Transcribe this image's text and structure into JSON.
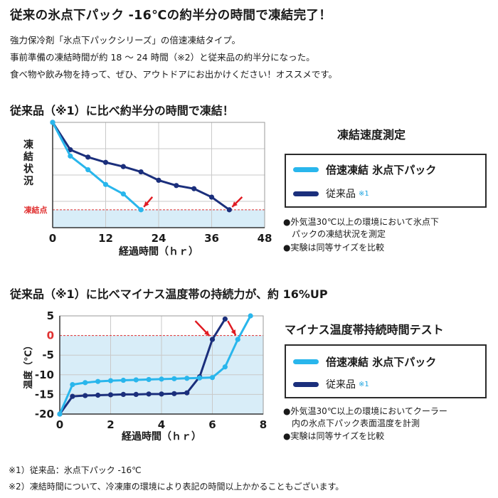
{
  "headline": "従来の氷点下パック -16℃の約半分の時間で凍結完了！",
  "intro_lines": [
    "強力保冷剤「氷点下パックシリーズ」の倍速凍結タイプ。",
    "事前準備の凍結時間が約 18 ～ 24 時間（※2）と従来品の約半分になった。",
    "食べ物や飲み物を持って、ぜひ、アウトドアにお出かけください！オススメです。"
  ],
  "section1_heading": "従来品（※1）に比べ約半分の時間で凍結！",
  "section2_heading": "従来品（※1）に比べマイナス温度帯の持続力が、約 16%UP",
  "colors": {
    "fast": "#29b6ec",
    "conventional": "#1b2f7c",
    "freeze_zone": "#d8edf8",
    "guide": "#e03030",
    "arrow": "#e01b22"
  },
  "chart_data": [
    {
      "type": "line",
      "title": "凍結速度測定",
      "ylabel": "凍結状況",
      "xlabel": "経過時間（ｈｒ）",
      "xlim": [
        0,
        48
      ],
      "ylim": [
        0,
        100
      ],
      "xticks": [
        "0",
        "12",
        "24",
        "36",
        "48"
      ],
      "freeze_label": "凍結点",
      "freeze_level": 17,
      "x": [
        0,
        4,
        8,
        12,
        16,
        20
      ],
      "series": [
        {
          "name": "倍速凍結 氷点下パック",
          "note": "",
          "x": [
            0,
            4,
            8,
            12,
            16,
            20
          ],
          "values": [
            100,
            68,
            55,
            41,
            32,
            17
          ]
        },
        {
          "name": "従来品",
          "note": "※1",
          "x": [
            0,
            4,
            8,
            12,
            16,
            20,
            24,
            28,
            32,
            36,
            40
          ],
          "values": [
            100,
            74,
            67,
            62,
            58,
            53,
            45,
            40,
            37,
            29,
            17
          ]
        }
      ],
      "legend": [
        "倍速凍結 氷点下パック",
        "従来品 ※1"
      ],
      "notes": [
        "●外気温30℃以上の環境において氷点下",
        "　パックの凍結状況を測定",
        "●実験は同等サイズを比較"
      ]
    },
    {
      "type": "line",
      "title": "マイナス温度帯持続時間テスト",
      "ylabel": "温度（℃）",
      "xlabel": "経過時間（ｈｒ）",
      "xlim": [
        0,
        8
      ],
      "ylim": [
        -20,
        5
      ],
      "xticks": [
        "0",
        "2",
        "4",
        "6",
        "8"
      ],
      "yticks": [
        "5",
        "0",
        "-5",
        "-10",
        "-15",
        "-20"
      ],
      "zero_line": 0,
      "series": [
        {
          "name": "倍速凍結 氷点下パック",
          "note": "",
          "x": [
            0,
            0.5,
            1,
            1.5,
            2,
            2.5,
            3,
            3.5,
            4,
            4.5,
            5,
            5.5,
            6,
            6.5,
            7,
            7.5
          ],
          "values": [
            -20,
            -12.5,
            -12,
            -11.7,
            -11.5,
            -11.4,
            -11.3,
            -11.2,
            -11.1,
            -11,
            -10.9,
            -10.8,
            -10.7,
            -8,
            -1,
            5
          ]
        },
        {
          "name": "従来品",
          "note": "※1",
          "x": [
            0,
            0.5,
            1,
            1.5,
            2,
            2.5,
            3,
            3.5,
            4,
            4.5,
            5,
            5.5,
            6,
            6.5
          ],
          "values": [
            -20,
            -15.5,
            -15.3,
            -15.2,
            -15.1,
            -15,
            -15,
            -14.9,
            -14.9,
            -14.8,
            -14.6,
            -10.5,
            -1,
            4.2
          ]
        }
      ],
      "legend": [
        "倍速凍結 氷点下パック",
        "従来品 ※1"
      ],
      "notes": [
        "●外気温30℃以上の環境においてクーラー",
        "　内の氷点下パック表面温度を計測",
        "●実験は同等サイズを比較"
      ]
    }
  ],
  "footnotes": [
    "※1）従来品：氷点下パック -16℃",
    "※2）凍結時間について、冷凍庫の環境により表記の時間以上かかることもございます。"
  ]
}
